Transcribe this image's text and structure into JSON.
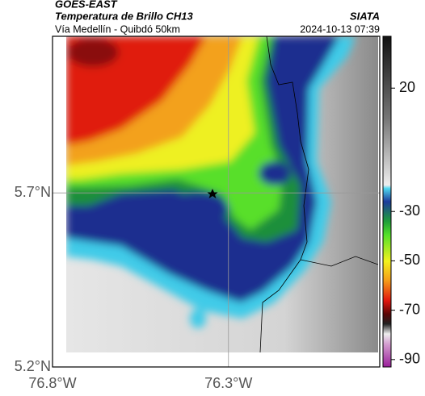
{
  "header": {
    "title": "GOES-EAST",
    "subtitle": "Temperatura de Brillo CH13",
    "route": "Vía Medellín - Quibdó 50km",
    "source": "SIATA",
    "timestamp": "2024-10-13 07:39"
  },
  "map": {
    "xlim": [
      -76.8,
      -75.87
    ],
    "ylim": [
      5.2,
      6.15
    ],
    "xticks": [
      {
        "value": -76.8,
        "label": "76.8°W"
      },
      {
        "value": -76.3,
        "label": "76.3°W"
      }
    ],
    "yticks": [
      {
        "value": 5.7,
        "label": "5.7°N"
      },
      {
        "value": 5.2,
        "label": "5.2°N"
      }
    ]
  },
  "colorbar": {
    "range": [
      -93,
      41
    ],
    "ticks": [
      20,
      -30,
      -50,
      -70,
      -90
    ]
  }
}
